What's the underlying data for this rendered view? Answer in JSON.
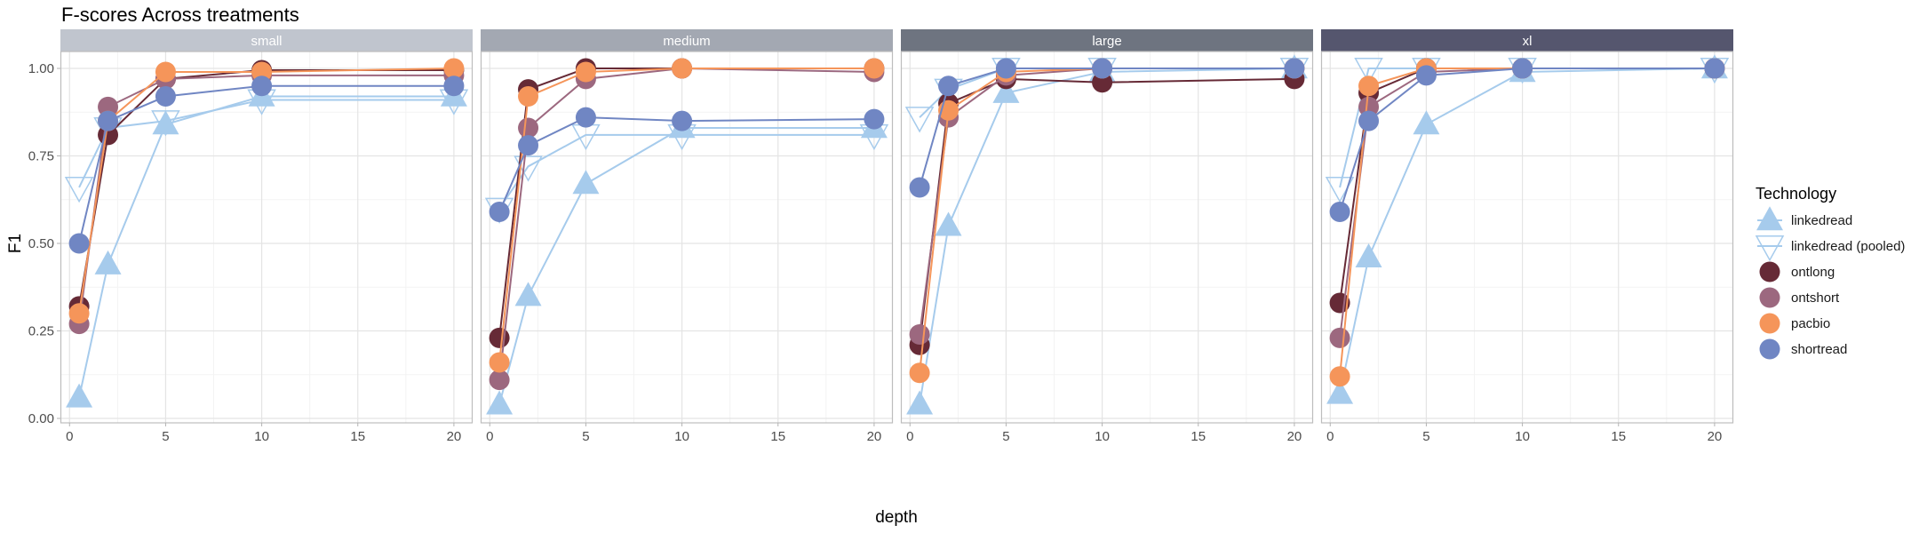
{
  "chart_data": {
    "type": "line",
    "title": "F-scores Across treatments",
    "xlabel": "depth",
    "ylabel": "F1",
    "xlim": [
      0,
      20
    ],
    "ylim": [
      0,
      1
    ],
    "x_ticks": [
      "0",
      "5",
      "10",
      "15",
      "20"
    ],
    "x_tick_values": [
      0,
      5,
      10,
      15,
      20
    ],
    "y_ticks": [
      "0.00",
      "0.25",
      "0.50",
      "0.75",
      "1.00"
    ],
    "y_tick_values": [
      0,
      0.25,
      0.5,
      0.75,
      1.0
    ],
    "grid": true,
    "x": [
      0.5,
      2,
      5,
      10,
      20
    ],
    "legend": {
      "title": "Technology",
      "placement": "right",
      "entries": [
        "linkedread",
        "linkedread (pooled)",
        "ontlong",
        "ontshort",
        "pacbio",
        "shortread"
      ]
    },
    "series_style": {
      "linkedread": {
        "color": "#a6cbec",
        "shape": "triangle-up-filled"
      },
      "linkedread (pooled)": {
        "color": "#a6cbec",
        "shape": "triangle-down-open"
      },
      "ontlong": {
        "color": "#662a36",
        "shape": "circle"
      },
      "ontshort": {
        "color": "#9c687f",
        "shape": "circle"
      },
      "pacbio": {
        "color": "#f5955a",
        "shape": "circle"
      },
      "shortread": {
        "color": "#7086c3",
        "shape": "circle"
      }
    },
    "panels": [
      {
        "label": "small",
        "strip_color": "#c0c5ce",
        "series": [
          {
            "name": "linkedread",
            "values": [
              0.06,
              0.44,
              0.84,
              0.92,
              0.92
            ]
          },
          {
            "name": "linkedread (pooled)",
            "values": [
              0.66,
              0.83,
              0.85,
              0.91,
              0.91
            ]
          },
          {
            "name": "ontlong",
            "values": [
              0.32,
              0.81,
              0.97,
              0.995,
              0.995
            ]
          },
          {
            "name": "ontshort",
            "values": [
              0.27,
              0.89,
              0.97,
              0.98,
              0.98
            ]
          },
          {
            "name": "pacbio",
            "values": [
              0.3,
              0.85,
              0.99,
              0.99,
              1.0
            ]
          },
          {
            "name": "shortread",
            "values": [
              0.5,
              0.85,
              0.92,
              0.95,
              0.95
            ]
          }
        ]
      },
      {
        "label": "medium",
        "strip_color": "#a3a8b2",
        "series": [
          {
            "name": "linkedread",
            "values": [
              0.04,
              0.35,
              0.67,
              0.83,
              0.83
            ]
          },
          {
            "name": "linkedread (pooled)",
            "values": [
              0.6,
              0.72,
              0.81,
              0.81,
              0.81
            ]
          },
          {
            "name": "ontlong",
            "values": [
              0.23,
              0.94,
              1.0,
              1.0,
              1.0
            ]
          },
          {
            "name": "ontshort",
            "values": [
              0.11,
              0.83,
              0.97,
              1.0,
              0.99
            ]
          },
          {
            "name": "pacbio",
            "values": [
              0.16,
              0.92,
              0.99,
              1.0,
              1.0
            ]
          },
          {
            "name": "shortread",
            "values": [
              0.59,
              0.78,
              0.86,
              0.85,
              0.855
            ]
          }
        ]
      },
      {
        "label": "large",
        "strip_color": "#6e7480",
        "series": [
          {
            "name": "linkedread",
            "values": [
              0.04,
              0.55,
              0.93,
              0.99,
              1.0
            ]
          },
          {
            "name": "linkedread (pooled)",
            "values": [
              0.86,
              0.94,
              1.0,
              1.0,
              1.0
            ]
          },
          {
            "name": "ontlong",
            "values": [
              0.21,
              0.9,
              0.97,
              0.96,
              0.97
            ]
          },
          {
            "name": "ontshort",
            "values": [
              0.24,
              0.86,
              0.98,
              1.0,
              1.0
            ]
          },
          {
            "name": "pacbio",
            "values": [
              0.13,
              0.88,
              0.99,
              1.0,
              1.0
            ]
          },
          {
            "name": "shortread",
            "values": [
              0.66,
              0.95,
              1.0,
              1.0,
              1.0
            ]
          }
        ]
      },
      {
        "label": "xl",
        "strip_color": "#55566e",
        "series": [
          {
            "name": "linkedread",
            "values": [
              0.07,
              0.46,
              0.84,
              0.99,
              1.0
            ]
          },
          {
            "name": "linkedread (pooled)",
            "values": [
              0.66,
              1.0,
              1.0,
              1.0,
              1.0
            ]
          },
          {
            "name": "ontlong",
            "values": [
              0.33,
              0.93,
              1.0,
              1.0,
              1.0
            ]
          },
          {
            "name": "ontshort",
            "values": [
              0.23,
              0.89,
              0.99,
              1.0,
              1.0
            ]
          },
          {
            "name": "pacbio",
            "values": [
              0.12,
              0.95,
              1.0,
              1.0,
              1.0
            ]
          },
          {
            "name": "shortread",
            "values": [
              0.59,
              0.85,
              0.98,
              1.0,
              1.0
            ]
          }
        ]
      }
    ]
  }
}
